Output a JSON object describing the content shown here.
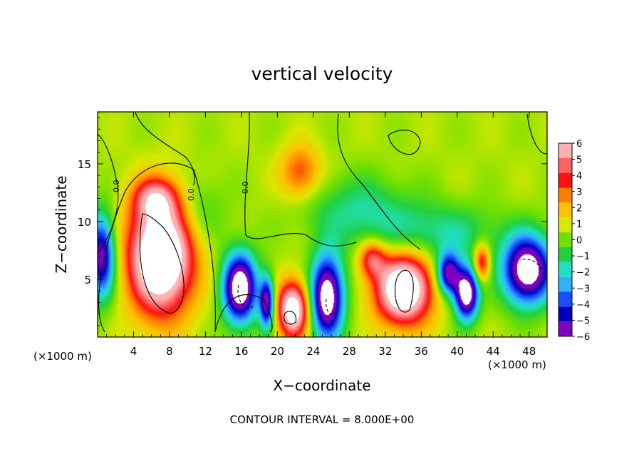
{
  "chart_data": {
    "type": "heatmap",
    "title": "vertical velocity",
    "xlabel": "X−coordinate",
    "ylabel": "Z−coordinate",
    "x_unit_left": "(×1000 m)",
    "x_unit_right": "(×1000 m)",
    "footer": "CONTOUR INTERVAL = 8.000E+00",
    "contour_label": "0.0",
    "xlim": [
      0,
      50
    ],
    "ylim": [
      0,
      19.5
    ],
    "xticks": [
      4,
      8,
      12,
      16,
      20,
      24,
      28,
      32,
      36,
      40,
      44,
      48
    ],
    "yticks": [
      5,
      10,
      15
    ],
    "colorbar": {
      "levels": [
        6,
        5,
        4,
        3,
        2,
        1,
        0,
        -1,
        -2,
        -3,
        -4,
        -5,
        -6
      ],
      "colors": [
        "#ffb0b0",
        "#ff6060",
        "#ff1010",
        "#ff8000",
        "#ffc000",
        "#d8e800",
        "#70e000",
        "#20d040",
        "#20e0c0",
        "#30b0ff",
        "#1850ff",
        "#0000c0",
        "#8000c0"
      ]
    },
    "features": [
      {
        "x": 7,
        "z": 7,
        "rx": 3.5,
        "rz": 4.8,
        "w": 10
      },
      {
        "x": 6.5,
        "z": 12,
        "rx": 2.5,
        "rz": 1.8,
        "w": 4
      },
      {
        "x": 0.4,
        "z": 7,
        "rx": 1.5,
        "rz": 3.5,
        "w": -7
      },
      {
        "x": 15.8,
        "z": 4.3,
        "rx": 1.9,
        "rz": 3.0,
        "w": -9
      },
      {
        "x": 18.8,
        "z": 3.0,
        "rx": 0.8,
        "rz": 2.2,
        "w": -7
      },
      {
        "x": 21.7,
        "z": 2.4,
        "rx": 1.7,
        "rz": 2.4,
        "w": 8
      },
      {
        "x": 25.5,
        "z": 3.5,
        "rx": 1.8,
        "rz": 3.5,
        "w": -9
      },
      {
        "x": 34,
        "z": 4.2,
        "rx": 3.1,
        "rz": 3.0,
        "w": 9
      },
      {
        "x": 30.5,
        "z": 6.8,
        "rx": 1.5,
        "rz": 1.6,
        "w": 4
      },
      {
        "x": 39,
        "z": 5.5,
        "rx": 1.3,
        "rz": 1.8,
        "w": -7
      },
      {
        "x": 41,
        "z": 3.8,
        "rx": 1.3,
        "rz": 2.2,
        "w": -9
      },
      {
        "x": 42.7,
        "z": 6.5,
        "rx": 0.9,
        "rz": 1.6,
        "w": 4.5
      },
      {
        "x": 47.8,
        "z": 5.8,
        "rx": 2.7,
        "rz": 2.9,
        "w": -9
      },
      {
        "x": 22.5,
        "z": 14.3,
        "rx": 2.2,
        "rz": 2.3,
        "w": 3.2
      },
      {
        "x": 29,
        "z": 11,
        "rx": 6,
        "rz": 3,
        "w": -2.1
      },
      {
        "x": 11,
        "z": 11,
        "rx": 3,
        "rz": 3,
        "w": -1.5
      },
      {
        "x": 38,
        "z": 9,
        "rx": 7,
        "rz": 2.5,
        "w": -2.2
      }
    ]
  }
}
